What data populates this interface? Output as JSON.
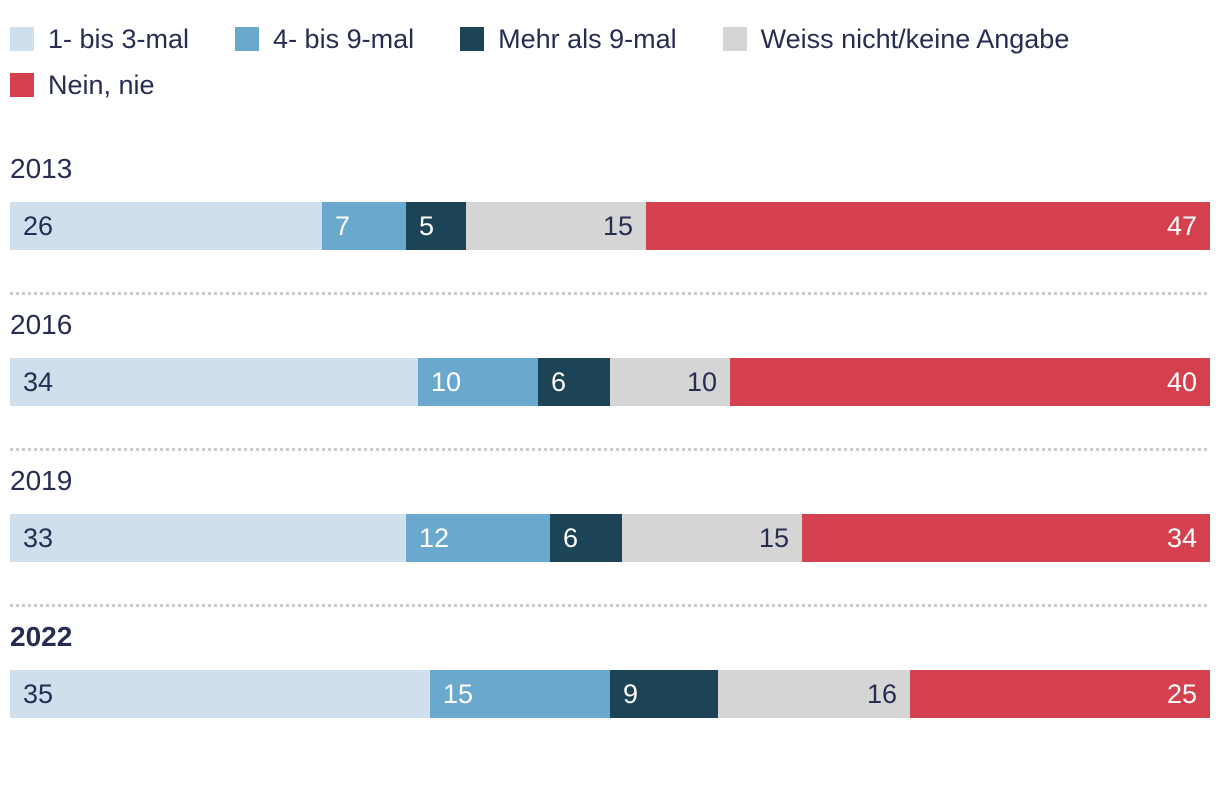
{
  "colors": {
    "light_blue": "#cfe0ec",
    "medium_blue": "#6aa8ce",
    "navy": "#1c4456",
    "gray": "#d5d5d5",
    "red": "#d5404e",
    "text_dark": "#272d52",
    "text_light": "#ffffff",
    "separator": "#cccccc"
  },
  "legend": [
    {
      "label": "1- bis 3-mal",
      "color_key": "light_blue"
    },
    {
      "label": "4- bis 9-mal",
      "color_key": "medium_blue"
    },
    {
      "label": "Mehr als 9-mal",
      "color_key": "navy"
    },
    {
      "label": "Weiss nicht/keine Angabe",
      "color_key": "gray"
    },
    {
      "label": "Nein, nie",
      "color_key": "red"
    }
  ],
  "chart_data": {
    "type": "bar",
    "orientation": "horizontal-stacked",
    "unit": "percent",
    "xlim": [
      0,
      100
    ],
    "grid": false,
    "legend_position": "top",
    "categories": [
      "2013",
      "2016",
      "2019",
      "2022"
    ],
    "highlighted_category": "2022",
    "series": [
      {
        "name": "1- bis 3-mal",
        "color_key": "light_blue",
        "values": [
          26,
          34,
          33,
          35
        ]
      },
      {
        "name": "4- bis 9-mal",
        "color_key": "medium_blue",
        "values": [
          7,
          10,
          12,
          15
        ]
      },
      {
        "name": "Mehr als 9-mal",
        "color_key": "navy",
        "values": [
          5,
          6,
          6,
          9
        ]
      },
      {
        "name": "Weiss nicht/keine Angabe",
        "color_key": "gray",
        "values": [
          15,
          10,
          15,
          16
        ]
      },
      {
        "name": "Nein, nie",
        "color_key": "red",
        "values": [
          47,
          40,
          34,
          25
        ]
      }
    ]
  }
}
